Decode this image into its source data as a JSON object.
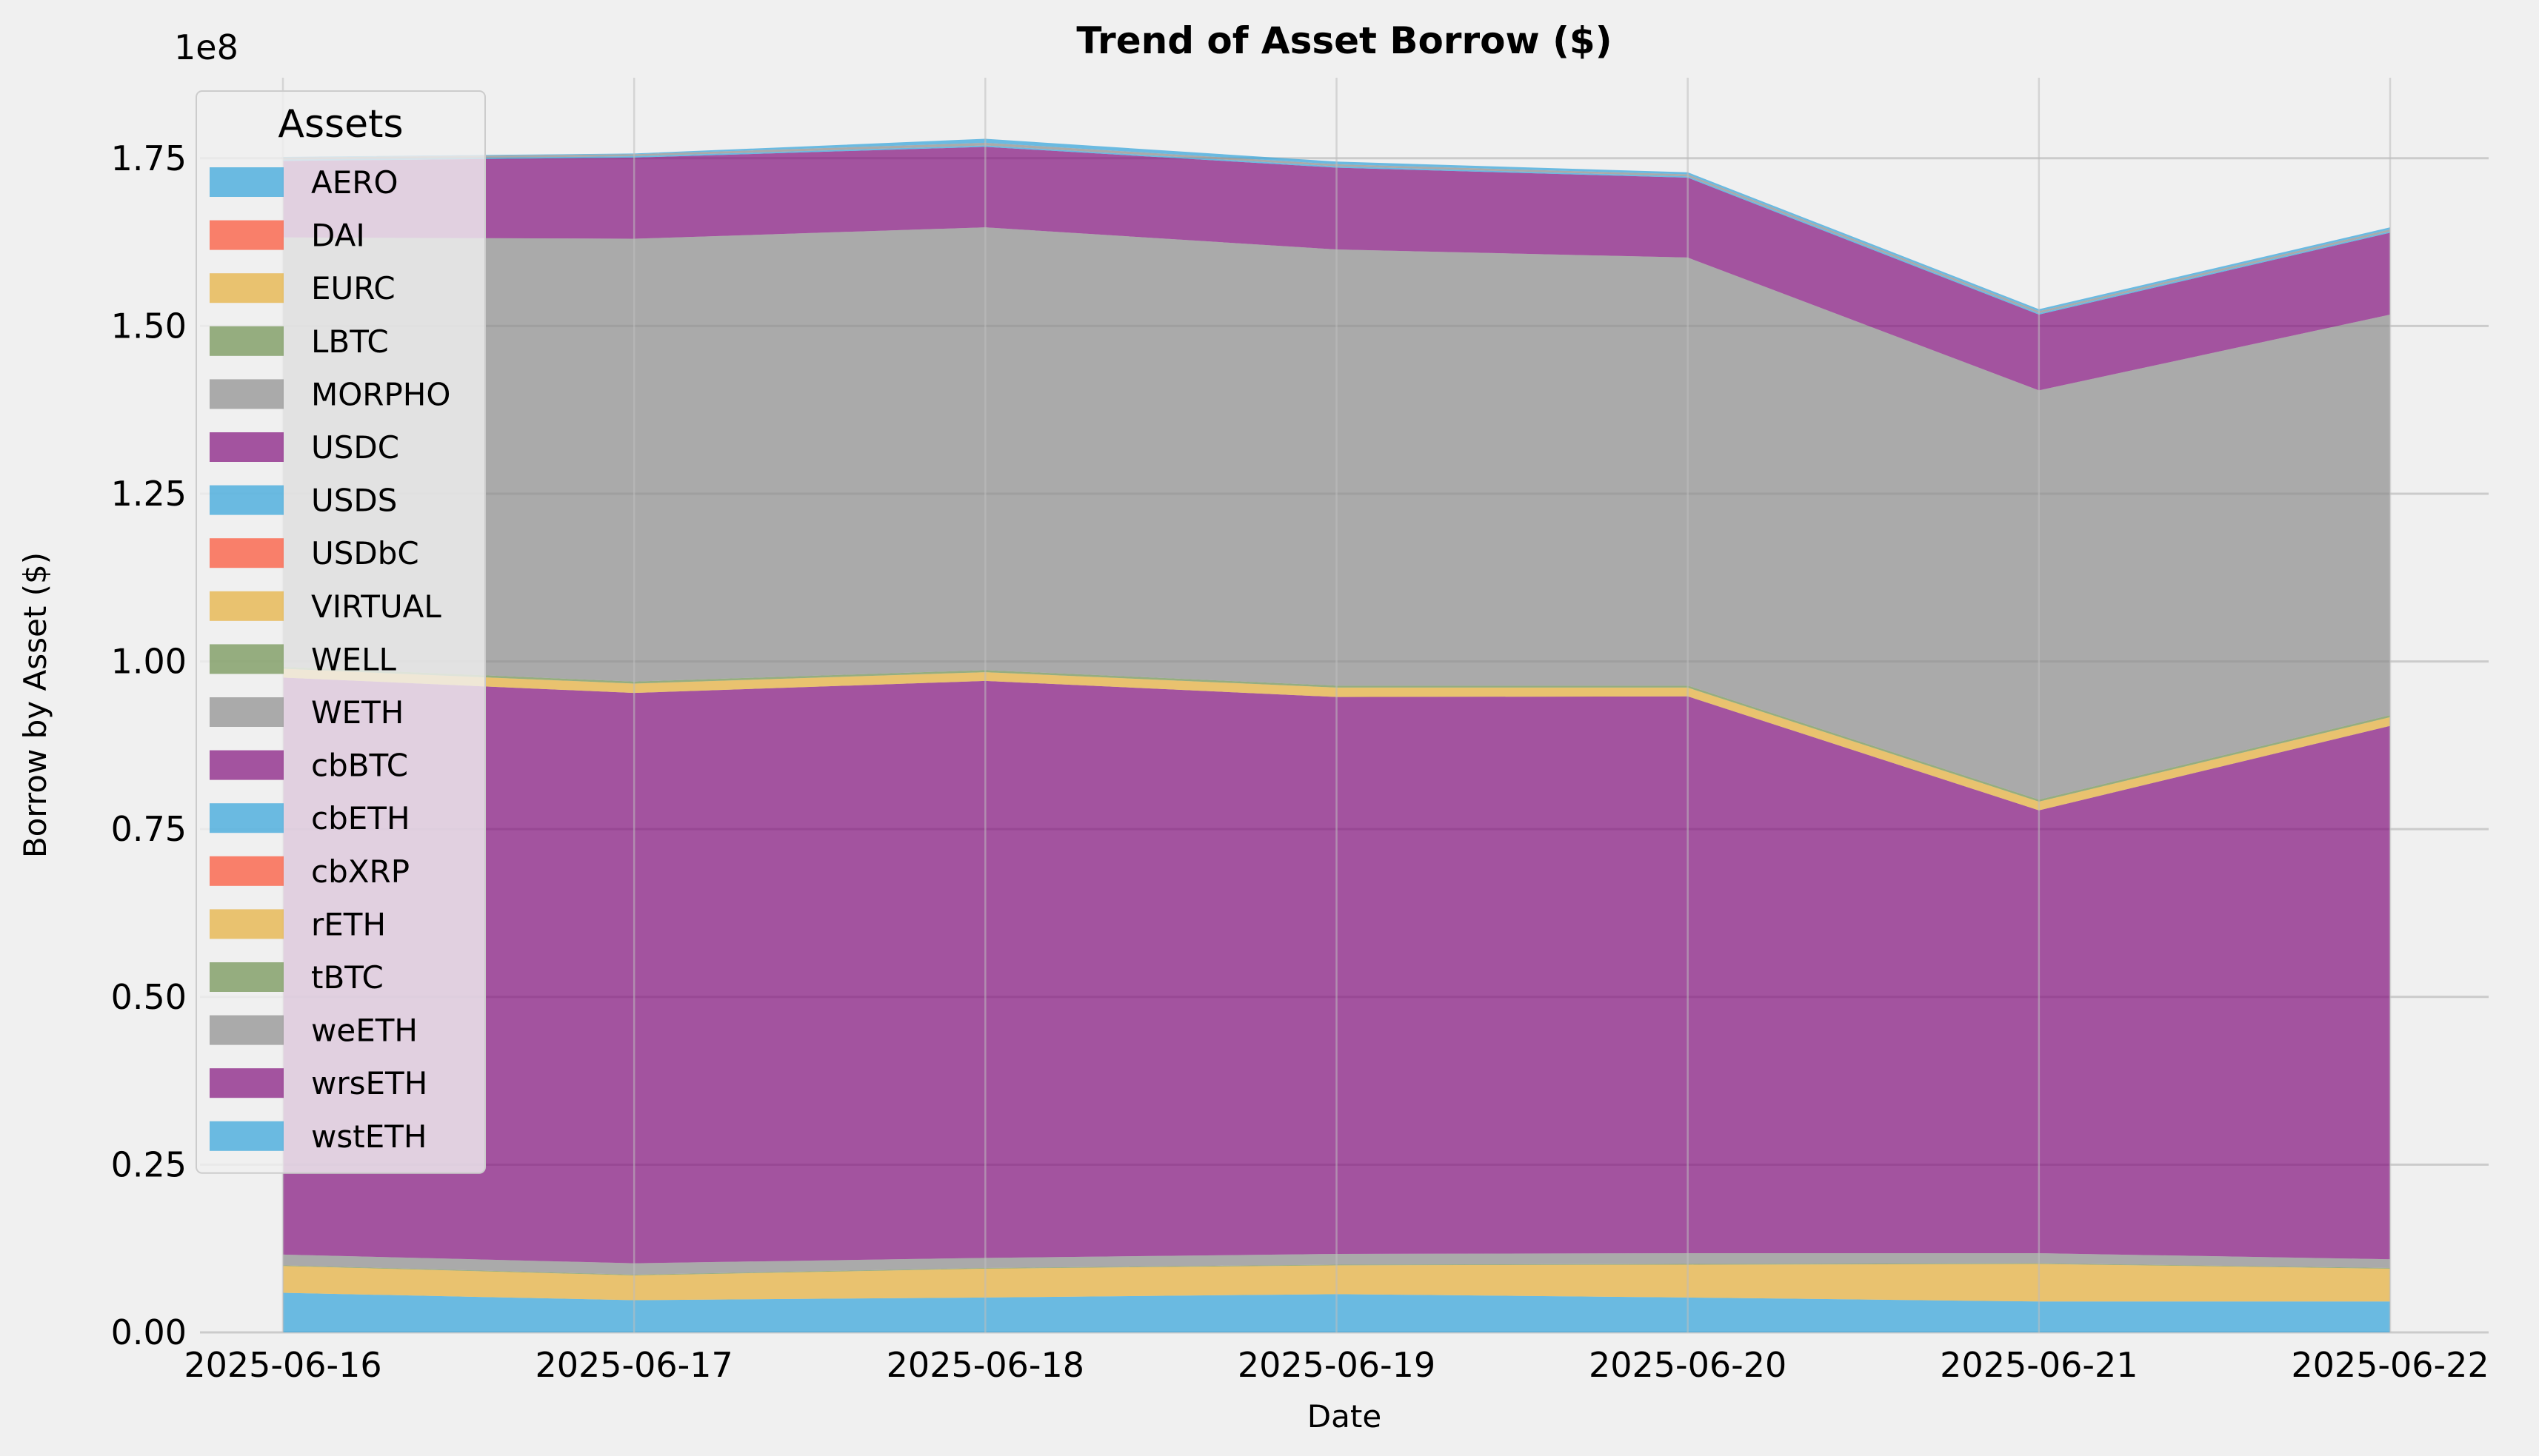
{
  "chart_data": {
    "type": "area",
    "stacked": true,
    "title": "Trend of Asset Borrow ($)",
    "xlabel": "Date",
    "ylabel": "Borrow by Asset ($)",
    "y_offset_label": "1e8",
    "ylim": [
      0,
      187000000
    ],
    "yticks": [
      0,
      25000000,
      50000000,
      75000000,
      100000000,
      125000000,
      150000000,
      175000000
    ],
    "ytick_labels": [
      "0.00",
      "0.25",
      "0.50",
      "0.75",
      "1.00",
      "1.25",
      "1.50",
      "1.75"
    ],
    "x": [
      "2025-06-16",
      "2025-06-17",
      "2025-06-18",
      "2025-06-19",
      "2025-06-20",
      "2025-06-21",
      "2025-06-22"
    ],
    "grid": true,
    "legend": {
      "title": "Assets",
      "position": "top-left"
    },
    "series": [
      {
        "name": "AERO",
        "color": "#30a2da",
        "values": [
          5900000,
          4800000,
          5200000,
          5700000,
          5200000,
          4600000,
          4600000
        ]
      },
      {
        "name": "DAI",
        "color": "#fc4f30",
        "values": [
          0,
          0,
          0,
          0,
          0,
          0,
          0
        ]
      },
      {
        "name": "EURC",
        "color": "#e5ae38",
        "values": [
          4000000,
          3700000,
          4300000,
          4300000,
          4900000,
          5600000,
          4900000
        ]
      },
      {
        "name": "LBTC",
        "color": "#6d904f",
        "values": [
          100000,
          100000,
          100000,
          100000,
          100000,
          100000,
          100000
        ]
      },
      {
        "name": "MORPHO",
        "color": "#8b8b8b",
        "values": [
          1600000,
          1700000,
          1500000,
          1600000,
          1600000,
          1500000,
          1300000
        ]
      },
      {
        "name": "USDC",
        "color": "#810f7c",
        "values": [
          86000000,
          85000000,
          86000000,
          83000000,
          83000000,
          66000000,
          79500000
        ]
      },
      {
        "name": "USDS",
        "color": "#30a2da",
        "values": [
          0,
          0,
          0,
          0,
          0,
          0,
          0
        ]
      },
      {
        "name": "USDbC",
        "color": "#fc4f30",
        "values": [
          0,
          0,
          0,
          0,
          0,
          0,
          0
        ]
      },
      {
        "name": "VIRTUAL",
        "color": "#e5ae38",
        "values": [
          1300000,
          1400000,
          1300000,
          1400000,
          1300000,
          1300000,
          1300000
        ]
      },
      {
        "name": "WELL",
        "color": "#6d904f",
        "values": [
          300000,
          300000,
          300000,
          300000,
          300000,
          300000,
          300000
        ]
      },
      {
        "name": "WETH",
        "color": "#8b8b8b",
        "values": [
          64000000,
          66000000,
          66000000,
          65000000,
          63800000,
          61000000,
          59700000
        ]
      },
      {
        "name": "cbBTC",
        "color": "#810f7c",
        "values": [
          11400000,
          12100000,
          12000000,
          12200000,
          11900000,
          11300000,
          12200000
        ]
      },
      {
        "name": "cbETH",
        "color": "#30a2da",
        "values": [
          200000,
          200000,
          200000,
          200000,
          200000,
          200000,
          200000
        ]
      },
      {
        "name": "cbXRP",
        "color": "#fc4f30",
        "values": [
          0,
          0,
          0,
          0,
          0,
          0,
          0
        ]
      },
      {
        "name": "rETH",
        "color": "#e5ae38",
        "values": [
          0,
          0,
          0,
          0,
          0,
          0,
          0
        ]
      },
      {
        "name": "tBTC",
        "color": "#6d904f",
        "values": [
          0,
          0,
          0,
          0,
          0,
          0,
          0
        ]
      },
      {
        "name": "weETH",
        "color": "#8b8b8b",
        "values": [
          300000,
          300000,
          400000,
          300000,
          300000,
          300000,
          300000
        ]
      },
      {
        "name": "wrsETH",
        "color": "#810f7c",
        "values": [
          0,
          0,
          0,
          0,
          0,
          0,
          0
        ]
      },
      {
        "name": "wstETH",
        "color": "#30a2da",
        "values": [
          100000,
          100000,
          600000,
          400000,
          300000,
          300000,
          300000
        ]
      }
    ]
  }
}
